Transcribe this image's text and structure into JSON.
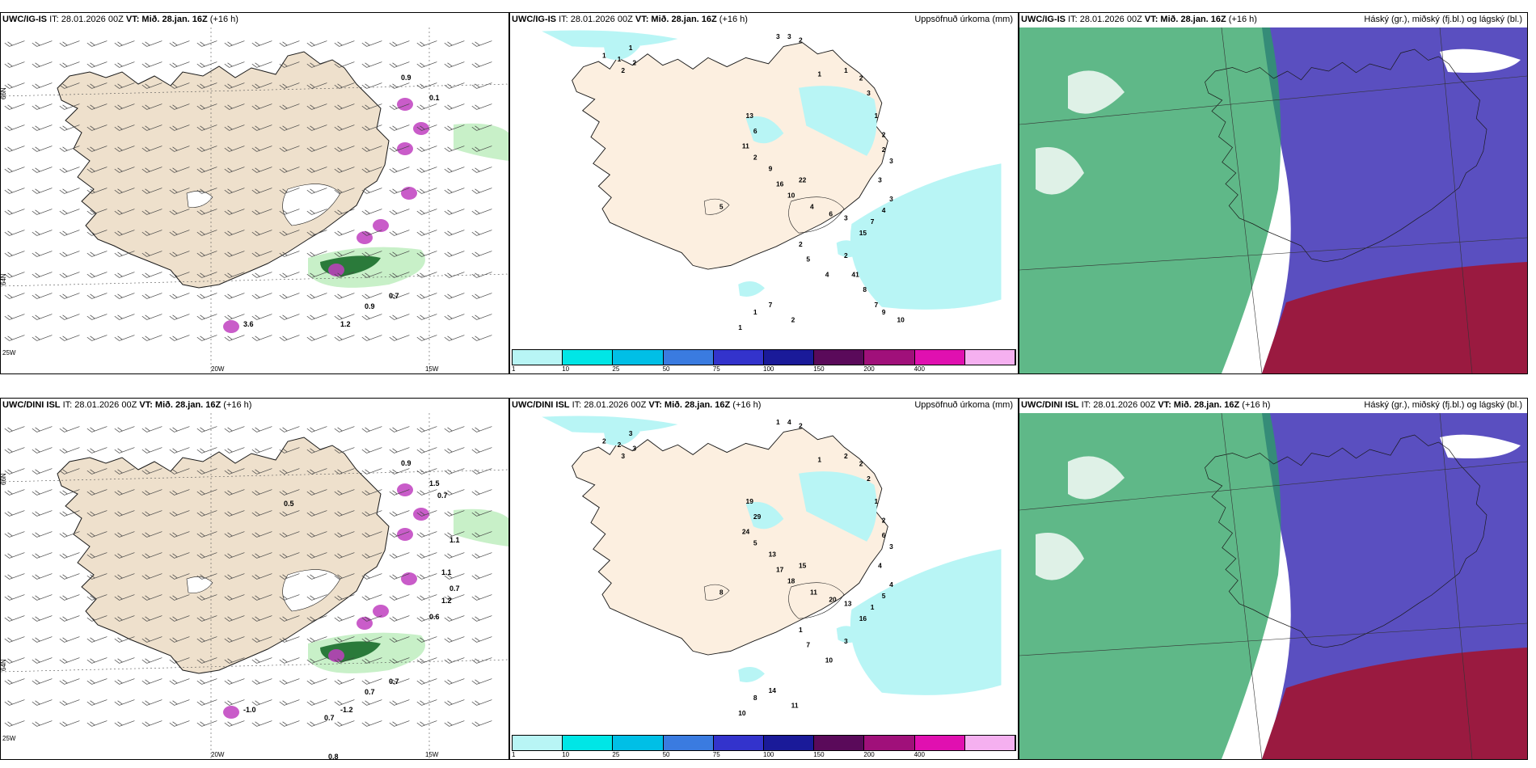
{
  "panels": [
    {
      "id": "p1",
      "model": "UWC/IG-IS",
      "it": "IT: 28.01.2026 00Z",
      "vt_label": "VT:",
      "vt_value": "Mið. 28.jan. 16Z",
      "lead": "(+16 h)",
      "right_title": "",
      "type": "wind",
      "lon_labels": [
        "20W",
        "15W"
      ],
      "lat_labels": [
        "66N",
        "64N"
      ],
      "extra_labels": [
        "25W"
      ],
      "values": [
        "0.9",
        "3.6",
        "0.9",
        "0.7",
        "1.2",
        "0.1"
      ]
    },
    {
      "id": "p2",
      "model": "UWC/IG-IS",
      "it": "IT: 28.01.2026 00Z",
      "vt_label": "VT:",
      "vt_value": "Mið. 28.jan. 16Z",
      "lead": "(+16 h)",
      "right_title": "Uppsöfnuð úrkoma (mm)",
      "type": "precip",
      "values": [
        "1",
        "1",
        "1",
        "2",
        "2",
        "3",
        "3",
        "2",
        "1",
        "1",
        "2",
        "3",
        "1",
        "2",
        "2",
        "3",
        "3",
        "3",
        "4",
        "7",
        "15",
        "13",
        "6",
        "11",
        "9",
        "16",
        "10",
        "22",
        "4",
        "6",
        "3",
        "2",
        "5",
        "2",
        "5",
        "4",
        "7",
        "2",
        "1",
        "1",
        "2",
        "41",
        "8",
        "7",
        "9",
        "10"
      ]
    },
    {
      "id": "p3",
      "model": "UWC/IG-IS",
      "it": "IT: 28.01.2026 00Z",
      "vt_label": "VT:",
      "vt_value": "Mið. 28.jan. 16Z",
      "lead": "(+16 h)",
      "right_title": "Háský (gr.), miðský (fj.bl.) og lágský (bl.)",
      "type": "cloud"
    },
    {
      "id": "p4",
      "model": "UWC/DINI ISL",
      "it": "IT: 28.01.2026 00Z",
      "vt_label": "VT:",
      "vt_value": "Mið. 28.jan. 16Z",
      "lead": "(+16 h)",
      "right_title": "",
      "type": "wind",
      "lon_labels": [
        "20W",
        "15W"
      ],
      "lat_labels": [
        "66N",
        "64N"
      ],
      "extra_labels": [
        "25W"
      ],
      "values": [
        "0.9",
        "-1.0",
        "0.7",
        "0.7",
        "-1.2",
        "1.5",
        "0.5",
        "0.7",
        "1.1",
        "1.1",
        "1.2",
        "0.6",
        "0.7",
        "0.8",
        "0.7"
      ]
    },
    {
      "id": "p5",
      "model": "UWC/DINI ISL",
      "it": "IT: 28.01.2026 00Z",
      "vt_label": "VT:",
      "vt_value": "Mið. 28.jan. 16Z",
      "lead": "(+16 h)",
      "right_title": "Uppsöfnuð úrkoma (mm)",
      "type": "precip",
      "values": [
        "2",
        "2",
        "3",
        "3",
        "3",
        "1",
        "4",
        "2",
        "1",
        "2",
        "2",
        "2",
        "1",
        "2",
        "6",
        "3",
        "4",
        "4",
        "5",
        "1",
        "16",
        "19",
        "29",
        "24",
        "13",
        "17",
        "18",
        "15",
        "11",
        "20",
        "13",
        "5",
        "8",
        "1",
        "7",
        "10",
        "14",
        "11",
        "8",
        "10",
        "3"
      ]
    },
    {
      "id": "p6",
      "model": "UWC/DINI ISL",
      "it": "IT: 28.01.2026 00Z",
      "vt_label": "VT:",
      "vt_value": "Mið. 28.jan. 16Z",
      "lead": "(+16 h)",
      "right_title": "Háský (gr.), miðský (fj.bl.) og lágský (bl.)",
      "type": "cloud"
    }
  ],
  "colorbar": {
    "labels": [
      "1",
      "10",
      "25",
      "50",
      "75",
      "100",
      "150",
      "200",
      "400"
    ],
    "colors": [
      "#b8f5f5",
      "#00e6e6",
      "#00bfe6",
      "#3a7be0",
      "#3333cc",
      "#1a1a99",
      "#5a0a5a",
      "#a0107a",
      "#e010b0",
      "#f5b0f0"
    ]
  },
  "colors": {
    "land": "#eee0cc",
    "land_precip": "#fcefe0",
    "precip_light": "#b8f5f5",
    "wind_green_light": "#c8f0c8",
    "wind_green_dark": "#2a7a3a",
    "magenta": "#c040c0",
    "cloud_high": "#2aa060",
    "cloud_mid": "#5a4fc0",
    "cloud_low": "#9a1a40",
    "coast": "#1a1a1a"
  }
}
